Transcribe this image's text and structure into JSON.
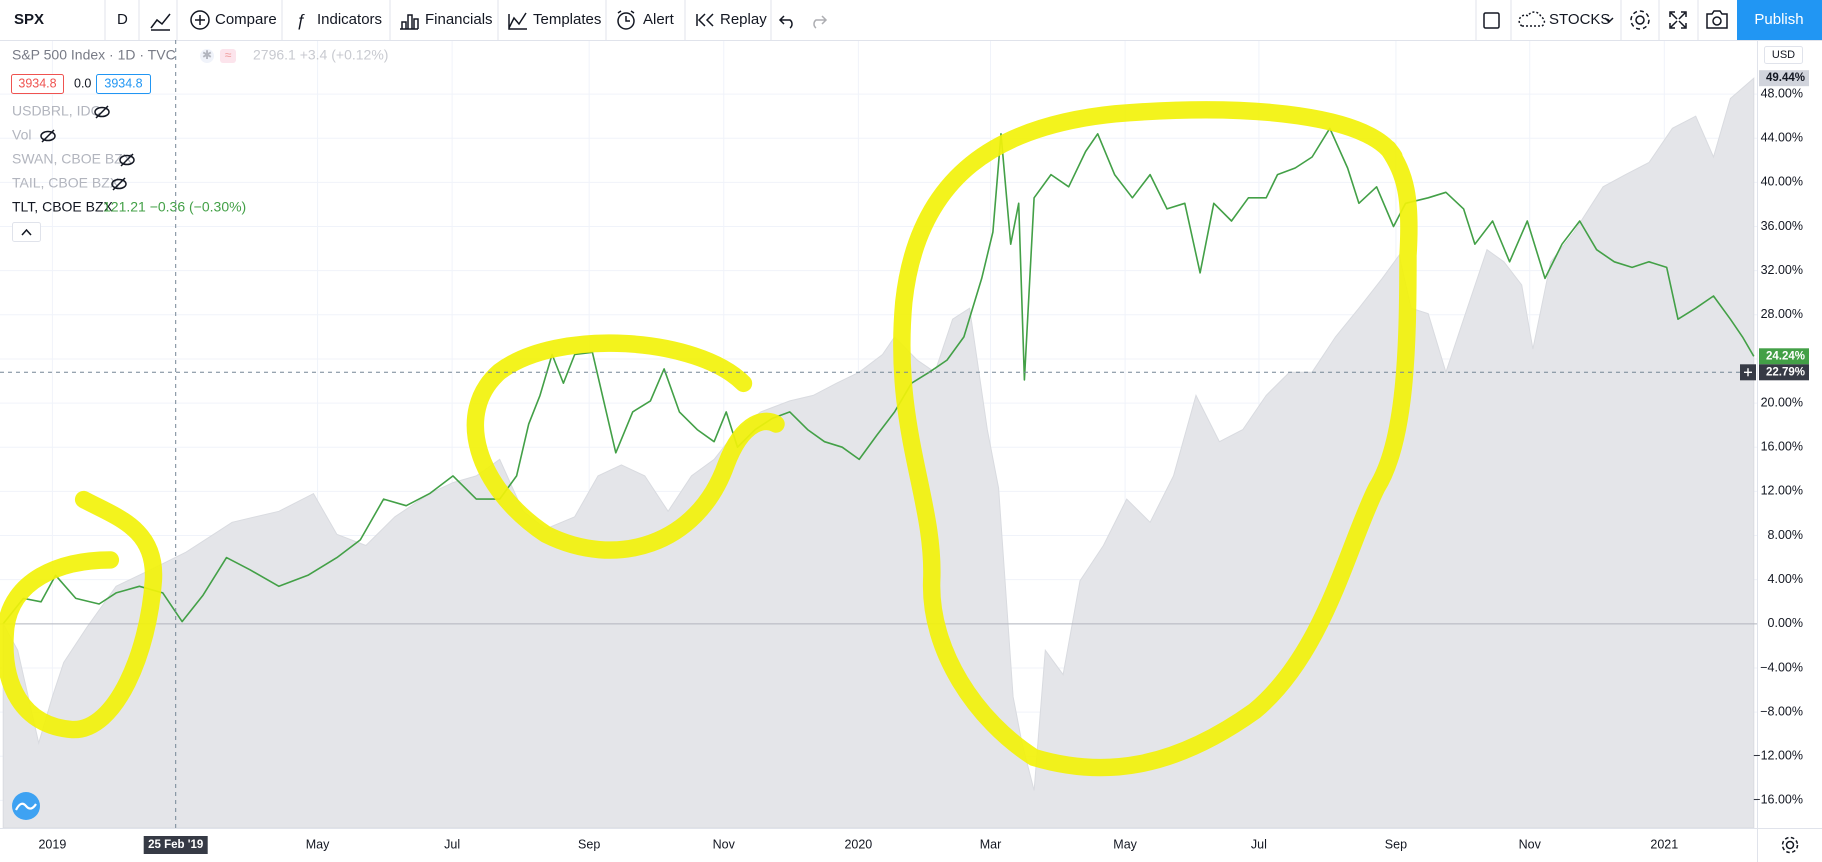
{
  "toolbar": {
    "symbol": "SPX",
    "interval": "D",
    "buttons": [
      "Compare",
      "Indicators",
      "Financials",
      "Templates",
      "Alert",
      "Replay"
    ],
    "market": "STOCKS",
    "publish": "Publish"
  },
  "legend": {
    "main": "S&P 500 Index · 1D · TVC",
    "main_quote": "2796.1 +3.4 (+0.12%)",
    "price_boxes": [
      "3934.8",
      "0.0",
      "3934.8"
    ],
    "studies": [
      "USDBRL, IDC",
      "Vol",
      "SWAN, CBOE BZX",
      "TAIL, CBOE BZX",
      "TLT, CBOE BZX"
    ],
    "tlt_quote": "121.21 −0.36 (−0.30%)"
  },
  "chart_data": {
    "type": "line",
    "currency": "USD",
    "grid": true,
    "baseline": 0,
    "xlim": [
      2018.935,
      2021.115
    ],
    "ylim": [
      -18.5,
      52.9
    ],
    "xticks": [
      2019,
      {
        "value": 2019.329,
        "label": "May"
      },
      {
        "value": 2019.496,
        "label": "Jul"
      },
      {
        "value": 2019.666,
        "label": "Sep"
      },
      {
        "value": 2019.833,
        "label": "Nov"
      },
      2020,
      {
        "value": 2020.164,
        "label": "Mar"
      },
      {
        "value": 2020.331,
        "label": "May"
      },
      {
        "value": 2020.497,
        "label": "Jul"
      },
      {
        "value": 2020.667,
        "label": "Sep"
      },
      {
        "value": 2020.833,
        "label": "Nov"
      },
      2021
    ],
    "yticks": [
      {
        "value": -16,
        "label": "−16.00%"
      },
      {
        "value": -12,
        "label": "−12.00%"
      },
      {
        "value": -8,
        "label": "−8.00%"
      },
      {
        "value": -4,
        "label": "−4.00%"
      },
      {
        "value": 0,
        "label": "0.00%"
      },
      {
        "value": 4,
        "label": "4.00%"
      },
      {
        "value": 8,
        "label": "8.00%"
      },
      {
        "value": 12,
        "label": "12.00%"
      },
      {
        "value": 16,
        "label": "16.00%"
      },
      {
        "value": 20,
        "label": "20.00%"
      },
      {
        "value": 24,
        "label": "24.00%"
      },
      {
        "value": 28,
        "label": "28.00%"
      },
      {
        "value": 32,
        "label": "32.00%"
      },
      {
        "value": 36,
        "label": "36.00%"
      },
      {
        "value": 40,
        "label": "40.00%"
      },
      {
        "value": 44,
        "label": "44.00%"
      },
      {
        "value": 48,
        "label": "48.00%"
      }
    ],
    "crosshair": {
      "x": {
        "value": 2019.153,
        "label": "25 Feb '19"
      },
      "y": {
        "value": 22.79,
        "label": "22.79%"
      }
    },
    "series": [
      {
        "style": "area",
        "color": "#e4e5e9",
        "last_label": "49.44%",
        "x": [
          2018.939,
          2018.957,
          2018.983,
          2019.0,
          2019.014,
          2019.043,
          2019.079,
          2019.122,
          2019.166,
          2019.223,
          2019.281,
          2019.324,
          2019.353,
          2019.389,
          2019.425,
          2019.468,
          2019.497,
          2019.526,
          2019.555,
          2019.584,
          2019.612,
          2019.648,
          2019.677,
          2019.706,
          2019.735,
          2019.764,
          2019.793,
          2019.821,
          2019.85,
          2019.879,
          2019.915,
          2019.944,
          2019.973,
          2020.001,
          2020.03,
          2020.045,
          2020.073,
          2020.095,
          2020.117,
          2020.138,
          2020.16,
          2020.174,
          2020.192,
          2020.203,
          2020.218,
          2020.232,
          2020.254,
          2020.275,
          2020.304,
          2020.333,
          2020.362,
          2020.391,
          2020.419,
          2020.448,
          2020.477,
          2020.506,
          2020.535,
          2020.563,
          2020.592,
          2020.621,
          2020.65,
          2020.671,
          2020.686,
          2020.707,
          2020.729,
          2020.751,
          2020.78,
          2020.801,
          2020.823,
          2020.837,
          2020.859,
          2020.888,
          2020.924,
          2020.952,
          2020.981,
          2021.01,
          2021.039,
          2021.061,
          2021.082,
          2021.111
        ],
        "values": [
          0,
          -2.4,
          -10.8,
          -6.6,
          -3.5,
          -0.3,
          3.4,
          4.9,
          6.5,
          9.2,
          10.2,
          11.8,
          8.1,
          7.1,
          9.7,
          11.8,
          12.8,
          13.4,
          14.9,
          10.2,
          8.6,
          9.7,
          13.4,
          14.4,
          13.4,
          10.2,
          13.4,
          14.9,
          17.6,
          19.2,
          20.2,
          20.7,
          21.8,
          22.8,
          24.4,
          26.0,
          23.9,
          22.8,
          27.6,
          28.6,
          17.6,
          12.3,
          -6.6,
          -10.8,
          -15.1,
          -2.4,
          -4.6,
          3.9,
          7.1,
          11.3,
          9.2,
          13.4,
          20.7,
          16.5,
          17.6,
          20.7,
          22.8,
          22.8,
          26.0,
          28.6,
          31.3,
          33.4,
          28.6,
          28.1,
          22.8,
          27.6,
          33.9,
          32.8,
          30.7,
          24.9,
          32.8,
          35.5,
          39.6,
          40.7,
          41.8,
          44.9,
          46.0,
          42.3,
          47.6,
          49.44
        ]
      },
      {
        "style": "line",
        "color": "#43a047",
        "last_label": "24.24%",
        "x": [
          2018.939,
          2018.964,
          2018.986,
          2019.004,
          2019.029,
          2019.058,
          2019.079,
          2019.108,
          2019.137,
          2019.161,
          2019.187,
          2019.216,
          2019.245,
          2019.281,
          2019.317,
          2019.353,
          2019.382,
          2019.411,
          2019.439,
          2019.468,
          2019.497,
          2019.526,
          2019.555,
          2019.576,
          2019.591,
          2019.605,
          2019.62,
          2019.634,
          2019.648,
          2019.67,
          2019.684,
          2019.699,
          2019.72,
          2019.742,
          2019.759,
          2019.778,
          2019.8,
          2019.821,
          2019.836,
          2019.85,
          2019.872,
          2019.893,
          2019.915,
          2019.937,
          2019.958,
          2019.98,
          2020.001,
          2020.023,
          2020.045,
          2020.066,
          2020.088,
          2020.11,
          2020.131,
          2020.153,
          2020.167,
          2020.177,
          2020.189,
          2020.199,
          2020.206,
          2020.218,
          2020.239,
          2020.261,
          2020.282,
          2020.297,
          2020.318,
          2020.34,
          2020.362,
          2020.383,
          2020.405,
          2020.424,
          2020.441,
          2020.463,
          2020.484,
          2020.506,
          2020.52,
          2020.542,
          2020.563,
          2020.585,
          2020.607,
          2020.621,
          2020.643,
          2020.664,
          2020.679,
          2020.707,
          2020.729,
          2020.751,
          2020.765,
          2020.787,
          2020.808,
          2020.83,
          2020.852,
          2020.873,
          2020.895,
          2020.916,
          2020.938,
          2020.96,
          2020.981,
          2021.003,
          2021.017,
          2021.039,
          2021.061,
          2021.082,
          2021.097,
          2021.111
        ],
        "values": [
          0,
          2.3,
          2.0,
          4.4,
          2.3,
          1.8,
          2.8,
          3.4,
          2.8,
          0.2,
          2.6,
          6.0,
          4.9,
          3.4,
          4.4,
          6.0,
          7.6,
          11.3,
          10.7,
          11.8,
          13.4,
          11.3,
          11.3,
          13.4,
          18.1,
          20.7,
          24.4,
          21.8,
          24.4,
          24.6,
          20.2,
          15.5,
          19.2,
          20.2,
          23.1,
          19.2,
          17.6,
          16.5,
          19.2,
          16.0,
          17.6,
          18.6,
          19.2,
          17.6,
          16.5,
          16.0,
          14.9,
          17.1,
          19.2,
          21.8,
          22.8,
          23.9,
          26.0,
          31.3,
          35.5,
          44.4,
          34.4,
          38.1,
          22.1,
          38.6,
          40.7,
          39.6,
          42.8,
          44.4,
          40.7,
          38.6,
          40.7,
          37.6,
          38.1,
          31.8,
          38.1,
          36.5,
          38.6,
          38.6,
          40.7,
          41.3,
          42.3,
          44.9,
          41.3,
          38.1,
          39.6,
          36.0,
          38.1,
          38.6,
          39.1,
          37.6,
          34.4,
          36.5,
          32.8,
          36.5,
          31.3,
          34.4,
          36.5,
          33.9,
          32.8,
          32.3,
          32.8,
          32.3,
          27.6,
          28.6,
          29.7,
          27.6,
          26.0,
          24.24
        ]
      }
    ]
  }
}
